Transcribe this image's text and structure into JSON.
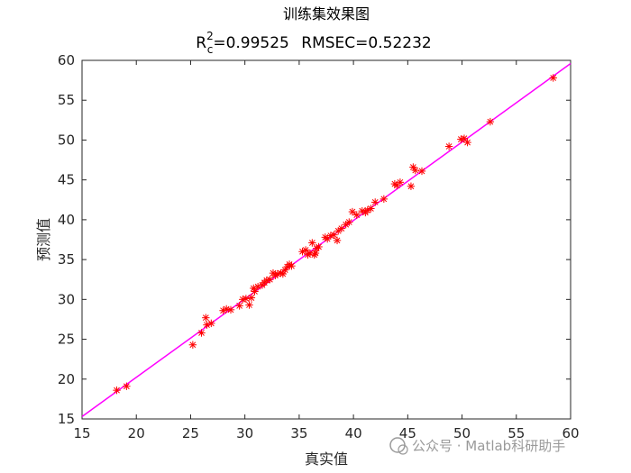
{
  "chart_data": {
    "type": "scatter",
    "title": "训练集效果图",
    "subtitle": {
      "r_label": "R",
      "r_superscript": "2",
      "r_subscript": "c",
      "r_value": "=0.99525",
      "rmse_text": "RMSEC=0.52232"
    },
    "xlabel": "真实值",
    "ylabel": "预测值",
    "xlim": [
      15,
      60
    ],
    "ylim": [
      15,
      60
    ],
    "xticks": [
      15,
      20,
      25,
      30,
      35,
      40,
      45,
      50,
      55,
      60
    ],
    "yticks": [
      15,
      20,
      25,
      30,
      35,
      40,
      45,
      50,
      55,
      60
    ],
    "grid": false,
    "marker": "*",
    "marker_color": "#ff0000",
    "line_color": "#ff00ff",
    "fit_line": {
      "x": [
        15,
        60
      ],
      "y": [
        15.3,
        59.6
      ]
    },
    "points": [
      [
        18.2,
        18.6
      ],
      [
        19.1,
        19.1
      ],
      [
        25.2,
        24.3
      ],
      [
        26.0,
        25.8
      ],
      [
        26.4,
        27.7
      ],
      [
        26.5,
        26.8
      ],
      [
        26.9,
        27.0
      ],
      [
        28.0,
        28.6
      ],
      [
        28.3,
        28.8
      ],
      [
        28.7,
        28.7
      ],
      [
        29.5,
        29.2
      ],
      [
        29.8,
        30.0
      ],
      [
        30.1,
        30.1
      ],
      [
        30.4,
        29.3
      ],
      [
        30.6,
        30.2
      ],
      [
        30.8,
        31.4
      ],
      [
        30.9,
        31.0
      ],
      [
        31.2,
        31.6
      ],
      [
        31.6,
        31.8
      ],
      [
        31.8,
        32.1
      ],
      [
        32.0,
        32.4
      ],
      [
        32.3,
        32.5
      ],
      [
        32.6,
        33.3
      ],
      [
        32.8,
        33.0
      ],
      [
        33.0,
        33.2
      ],
      [
        33.3,
        33.3
      ],
      [
        33.5,
        33.2
      ],
      [
        33.7,
        33.7
      ],
      [
        33.9,
        34.1
      ],
      [
        34.1,
        34.4
      ],
      [
        34.3,
        34.2
      ],
      [
        35.3,
        36.0
      ],
      [
        35.6,
        36.2
      ],
      [
        35.8,
        35.6
      ],
      [
        36.0,
        35.8
      ],
      [
        36.2,
        37.1
      ],
      [
        36.4,
        35.6
      ],
      [
        36.5,
        35.8
      ],
      [
        36.6,
        36.4
      ],
      [
        36.8,
        36.6
      ],
      [
        37.4,
        37.8
      ],
      [
        37.6,
        37.6
      ],
      [
        37.9,
        38.0
      ],
      [
        38.2,
        38.1
      ],
      [
        38.5,
        37.4
      ],
      [
        38.6,
        38.6
      ],
      [
        38.9,
        38.9
      ],
      [
        39.3,
        39.4
      ],
      [
        39.6,
        39.7
      ],
      [
        39.9,
        41.0
      ],
      [
        40.3,
        40.6
      ],
      [
        40.8,
        41.1
      ],
      [
        41.1,
        40.9
      ],
      [
        41.3,
        41.2
      ],
      [
        41.6,
        41.4
      ],
      [
        42.0,
        42.2
      ],
      [
        42.8,
        42.6
      ],
      [
        43.8,
        44.5
      ],
      [
        44.0,
        44.3
      ],
      [
        44.3,
        44.7
      ],
      [
        45.3,
        44.2
      ],
      [
        45.5,
        46.6
      ],
      [
        45.7,
        46.2
      ],
      [
        46.3,
        46.1
      ],
      [
        48.8,
        49.2
      ],
      [
        49.9,
        50.1
      ],
      [
        50.2,
        50.2
      ],
      [
        50.5,
        49.7
      ],
      [
        52.6,
        52.3
      ],
      [
        58.4,
        57.8
      ]
    ]
  },
  "watermark": {
    "text": "公众号 · Matlab科研助手"
  }
}
